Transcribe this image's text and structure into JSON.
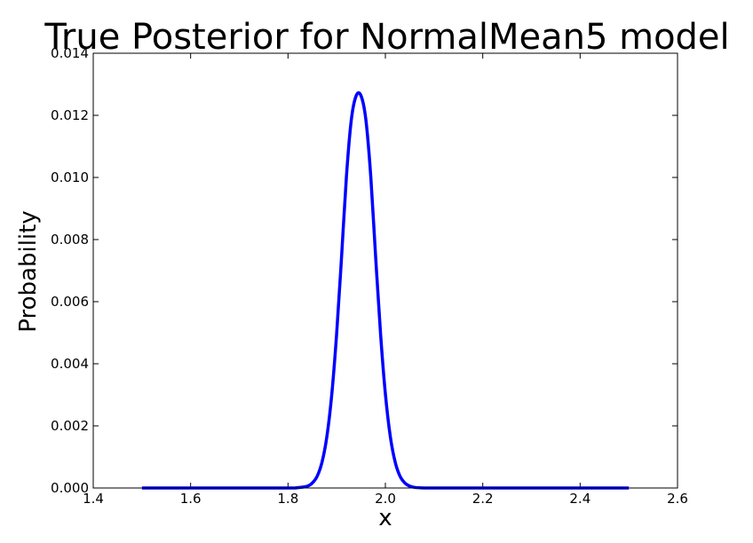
{
  "chart_data": {
    "type": "line",
    "title": "True Posterior for NormalMean5 model",
    "xlabel": "x",
    "ylabel": "Probability",
    "xlim": [
      1.4,
      2.6
    ],
    "ylim": [
      0.0,
      0.014
    ],
    "x_ticks": [
      "1.4",
      "1.6",
      "1.8",
      "2.0",
      "2.2",
      "2.4",
      "2.6"
    ],
    "y_ticks": [
      "0.000",
      "0.002",
      "0.004",
      "0.006",
      "0.008",
      "0.010",
      "0.012",
      "0.014"
    ],
    "grid": false,
    "series": [
      {
        "color": "#0000ff",
        "x": [
          1.5,
          1.6,
          1.7,
          1.8,
          1.82,
          1.84,
          1.85,
          1.86,
          1.87,
          1.88,
          1.89,
          1.9,
          1.91,
          1.92,
          1.93,
          1.94,
          1.95,
          1.96,
          1.97,
          1.98,
          1.99,
          2.0,
          2.01,
          2.02,
          2.03,
          2.04,
          2.05,
          2.06,
          2.08,
          2.1,
          2.2,
          2.3,
          2.4,
          2.5
        ],
        "y": [
          0.0,
          0.0,
          0.0,
          0.0,
          1e-05,
          6e-05,
          0.00016,
          0.00038,
          0.00084,
          0.00167,
          0.00303,
          0.00499,
          0.00744,
          0.01003,
          0.01185,
          0.01263,
          0.01263,
          0.01185,
          0.01003,
          0.00744,
          0.00499,
          0.00303,
          0.00167,
          0.00084,
          0.00038,
          0.00016,
          6e-05,
          2e-05,
          0.0,
          0.0,
          0.0,
          0.0,
          0.0,
          0.0
        ]
      }
    ]
  }
}
